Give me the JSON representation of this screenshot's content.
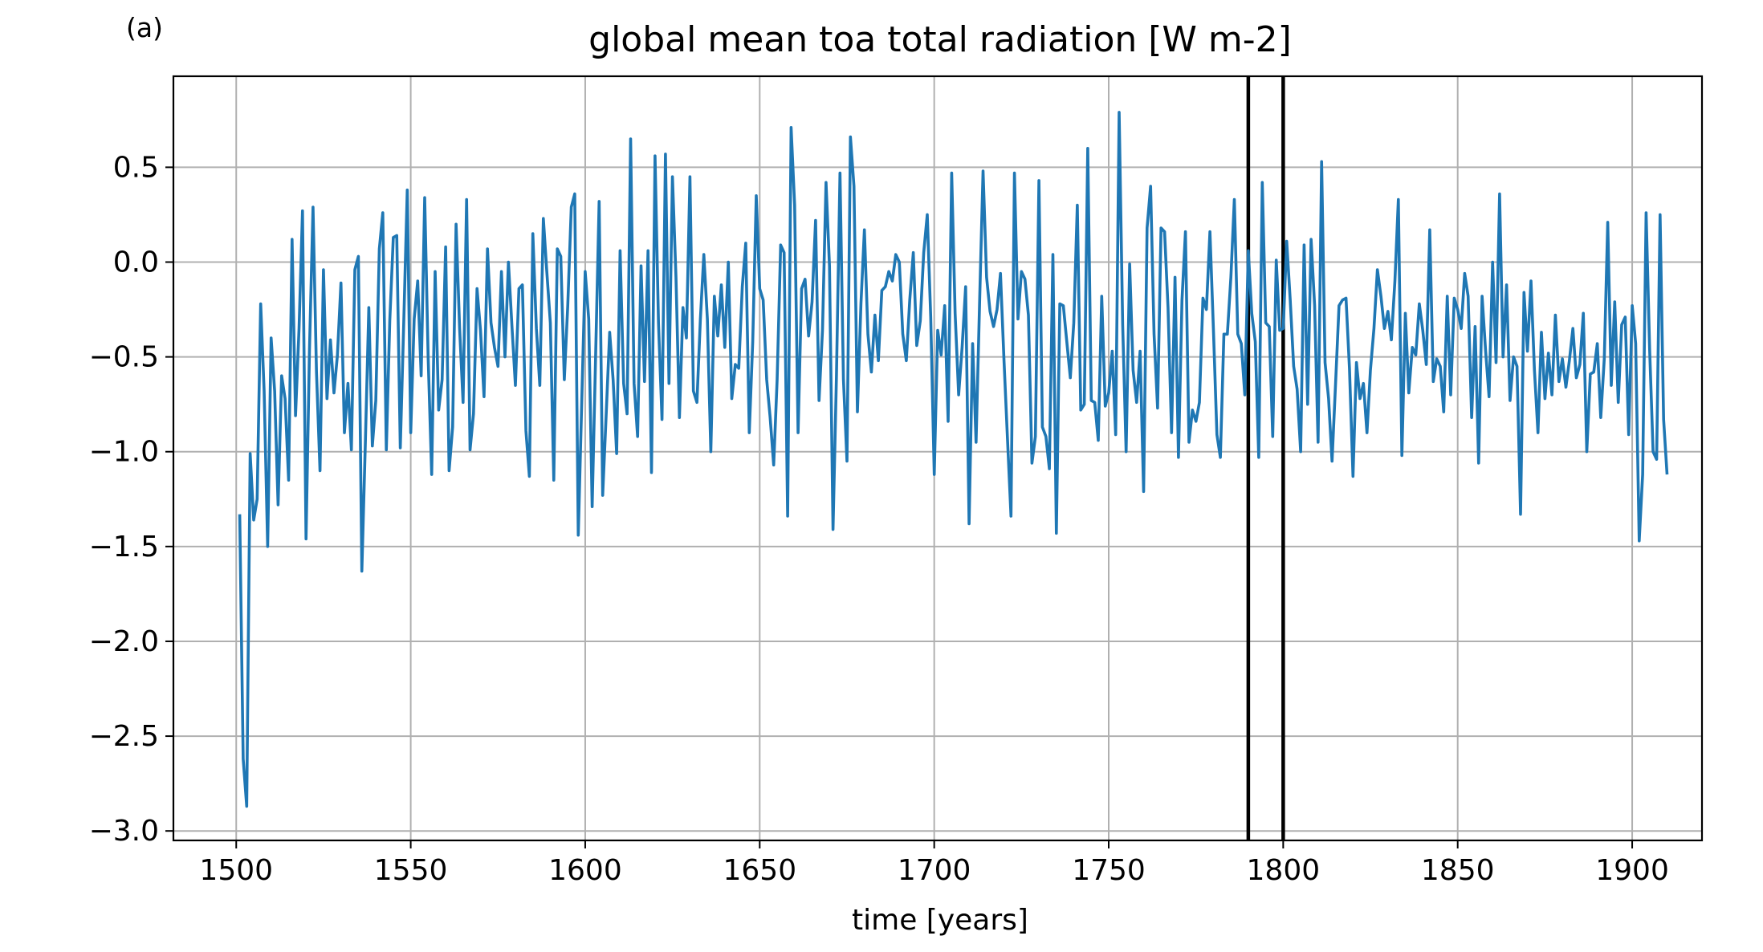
{
  "panel_label": "(a)",
  "chart_data": {
    "type": "line",
    "title": "global mean toa total radiation [W m-2]",
    "xlabel": "time [years]",
    "ylabel": "",
    "xlim": [
      1482,
      1920
    ],
    "ylim": [
      -3.05,
      0.98
    ],
    "grid": true,
    "xticks": [
      1500,
      1550,
      1600,
      1650,
      1700,
      1750,
      1800,
      1850,
      1900
    ],
    "xtick_labels": [
      "1500",
      "1550",
      "1600",
      "1650",
      "1700",
      "1750",
      "1800",
      "1850",
      "1900"
    ],
    "yticks": [
      0.5,
      0.0,
      -0.5,
      -1.0,
      -1.5,
      -2.0,
      -2.5,
      -3.0
    ],
    "ytick_labels": [
      "0.5",
      "0.0",
      "−0.5",
      "−1.0",
      "−1.5",
      "−2.0",
      "−2.5",
      "−3.0"
    ],
    "vertical_lines": [
      1790,
      1800
    ],
    "series": [
      {
        "color": "#1f77b4",
        "x_start": 1501,
        "x_step": 1,
        "values": [
          -1.33,
          -2.62,
          -2.87,
          -1.01,
          -1.36,
          -1.25,
          -0.22,
          -0.68,
          -1.5,
          -0.4,
          -0.68,
          -1.28,
          -0.6,
          -0.72,
          -1.15,
          0.12,
          -0.81,
          -0.35,
          0.27,
          -1.46,
          -0.46,
          0.29,
          -0.58,
          -1.1,
          -0.04,
          -0.72,
          -0.41,
          -0.69,
          -0.49,
          -0.11,
          -0.9,
          -0.64,
          -0.99,
          -0.04,
          0.03,
          -1.63,
          -0.95,
          -0.24,
          -0.97,
          -0.73,
          0.07,
          0.26,
          -0.99,
          -0.31,
          0.13,
          0.14,
          -0.98,
          -0.32,
          0.38,
          -0.9,
          -0.3,
          -0.1,
          -0.6,
          0.34,
          -0.5,
          -1.12,
          -0.05,
          -0.78,
          -0.62,
          0.08,
          -1.1,
          -0.87,
          0.2,
          -0.35,
          -0.74,
          0.33,
          -0.99,
          -0.8,
          -0.14,
          -0.36,
          -0.71,
          0.07,
          -0.32,
          -0.45,
          -0.55,
          -0.05,
          -0.5,
          0.0,
          -0.34,
          -0.65,
          -0.14,
          -0.12,
          -0.89,
          -1.13,
          0.15,
          -0.35,
          -0.65,
          0.23,
          -0.05,
          -0.32,
          -1.15,
          0.07,
          0.03,
          -0.62,
          -0.23,
          0.29,
          0.36,
          -1.44,
          -0.74,
          -0.05,
          -0.3,
          -1.29,
          -0.48,
          0.32,
          -1.23,
          -0.81,
          -0.37,
          -0.62,
          -1.01,
          0.06,
          -0.64,
          -0.8,
          0.65,
          -0.64,
          -0.92,
          -0.02,
          -0.63,
          0.06,
          -1.11,
          0.56,
          -0.32,
          -0.83,
          0.57,
          -0.64,
          0.45,
          -0.08,
          -0.82,
          -0.24,
          -0.4,
          0.45,
          -0.68,
          -0.74,
          -0.3,
          0.04,
          -0.3,
          -1.0,
          -0.18,
          -0.39,
          -0.12,
          -0.45,
          0.0,
          -0.72,
          -0.54,
          -0.56,
          -0.13,
          0.1,
          -0.9,
          -0.42,
          0.35,
          -0.14,
          -0.2,
          -0.62,
          -0.82,
          -1.07,
          -0.62,
          0.09,
          0.05,
          -1.34,
          0.71,
          0.3,
          -0.9,
          -0.14,
          -0.09,
          -0.39,
          -0.21,
          0.22,
          -0.73,
          -0.36,
          0.42,
          -0.02,
          -1.41,
          -0.6,
          0.47,
          -0.62,
          -1.05,
          0.66,
          0.4,
          -0.79,
          -0.22,
          0.17,
          -0.38,
          -0.58,
          -0.28,
          -0.52,
          -0.15,
          -0.13,
          -0.05,
          -0.1,
          0.04,
          0.0,
          -0.38,
          -0.52,
          -0.2,
          0.05,
          -0.44,
          -0.31,
          0.05,
          0.25,
          -0.29,
          -1.12,
          -0.36,
          -0.49,
          -0.23,
          -0.84,
          0.47,
          -0.27,
          -0.7,
          -0.45,
          -0.13,
          -1.38,
          -0.43,
          -0.95,
          -0.21,
          0.48,
          -0.08,
          -0.26,
          -0.34,
          -0.25,
          -0.06,
          -0.52,
          -0.93,
          -1.34,
          0.47,
          -0.3,
          -0.05,
          -0.09,
          -0.28,
          -1.06,
          -0.92,
          0.43,
          -0.87,
          -0.92,
          -1.09,
          0.04,
          -1.43,
          -0.22,
          -0.23,
          -0.42,
          -0.61,
          -0.32,
          0.3,
          -0.78,
          -0.75,
          0.6,
          -0.73,
          -0.74,
          -0.94,
          -0.18,
          -0.76,
          -0.69,
          -0.47,
          -0.91,
          0.79,
          -0.33,
          -1.0,
          -0.01,
          -0.57,
          -0.74,
          -0.47,
          -1.21,
          0.18,
          0.4,
          -0.38,
          -0.77,
          0.18,
          0.16,
          -0.24,
          -0.9,
          -0.08,
          -1.03,
          -0.2,
          0.16,
          -0.95,
          -0.78,
          -0.84,
          -0.74,
          -0.19,
          -0.25,
          0.16,
          -0.35,
          -0.91,
          -1.03,
          -0.38,
          -0.38,
          -0.08,
          0.33,
          -0.38,
          -0.43,
          -0.7,
          0.06,
          -0.27,
          -0.42,
          -1.03,
          0.42,
          -0.32,
          -0.34,
          -0.92,
          0.01,
          -0.36,
          -0.35,
          0.11,
          -0.2,
          -0.55,
          -0.67,
          -1.0,
          0.09,
          -0.75,
          0.12,
          -0.23,
          -0.95,
          0.53,
          -0.53,
          -0.72,
          -1.05,
          -0.64,
          -0.23,
          -0.2,
          -0.19,
          -0.56,
          -1.13,
          -0.53,
          -0.72,
          -0.64,
          -0.9,
          -0.57,
          -0.35,
          -0.04,
          -0.18,
          -0.35,
          -0.26,
          -0.41,
          -0.1,
          0.33,
          -1.02,
          -0.27,
          -0.69,
          -0.45,
          -0.49,
          -0.22,
          -0.36,
          -0.54,
          0.17,
          -0.63,
          -0.51,
          -0.55,
          -0.79,
          -0.18,
          -0.7,
          -0.19,
          -0.25,
          -0.35,
          -0.06,
          -0.18,
          -0.82,
          -0.34,
          -1.06,
          -0.18,
          -0.47,
          -0.71,
          0.0,
          -0.53,
          0.36,
          -0.5,
          -0.12,
          -0.73,
          -0.5,
          -0.55,
          -1.33,
          -0.16,
          -0.47,
          -0.1,
          -0.57,
          -0.9,
          -0.37,
          -0.72,
          -0.48,
          -0.7,
          -0.28,
          -0.63,
          -0.51,
          -0.66,
          -0.52,
          -0.35,
          -0.61,
          -0.54,
          -0.27,
          -1.0,
          -0.59,
          -0.58,
          -0.43,
          -0.82,
          -0.51,
          0.21,
          -0.65,
          -0.21,
          -0.74,
          -0.33,
          -0.29,
          -0.91,
          -0.23,
          -0.43,
          -1.47,
          -1.12,
          0.26,
          -0.46,
          -1.0,
          -1.04,
          0.25,
          -0.83,
          -1.12
        ]
      }
    ]
  }
}
